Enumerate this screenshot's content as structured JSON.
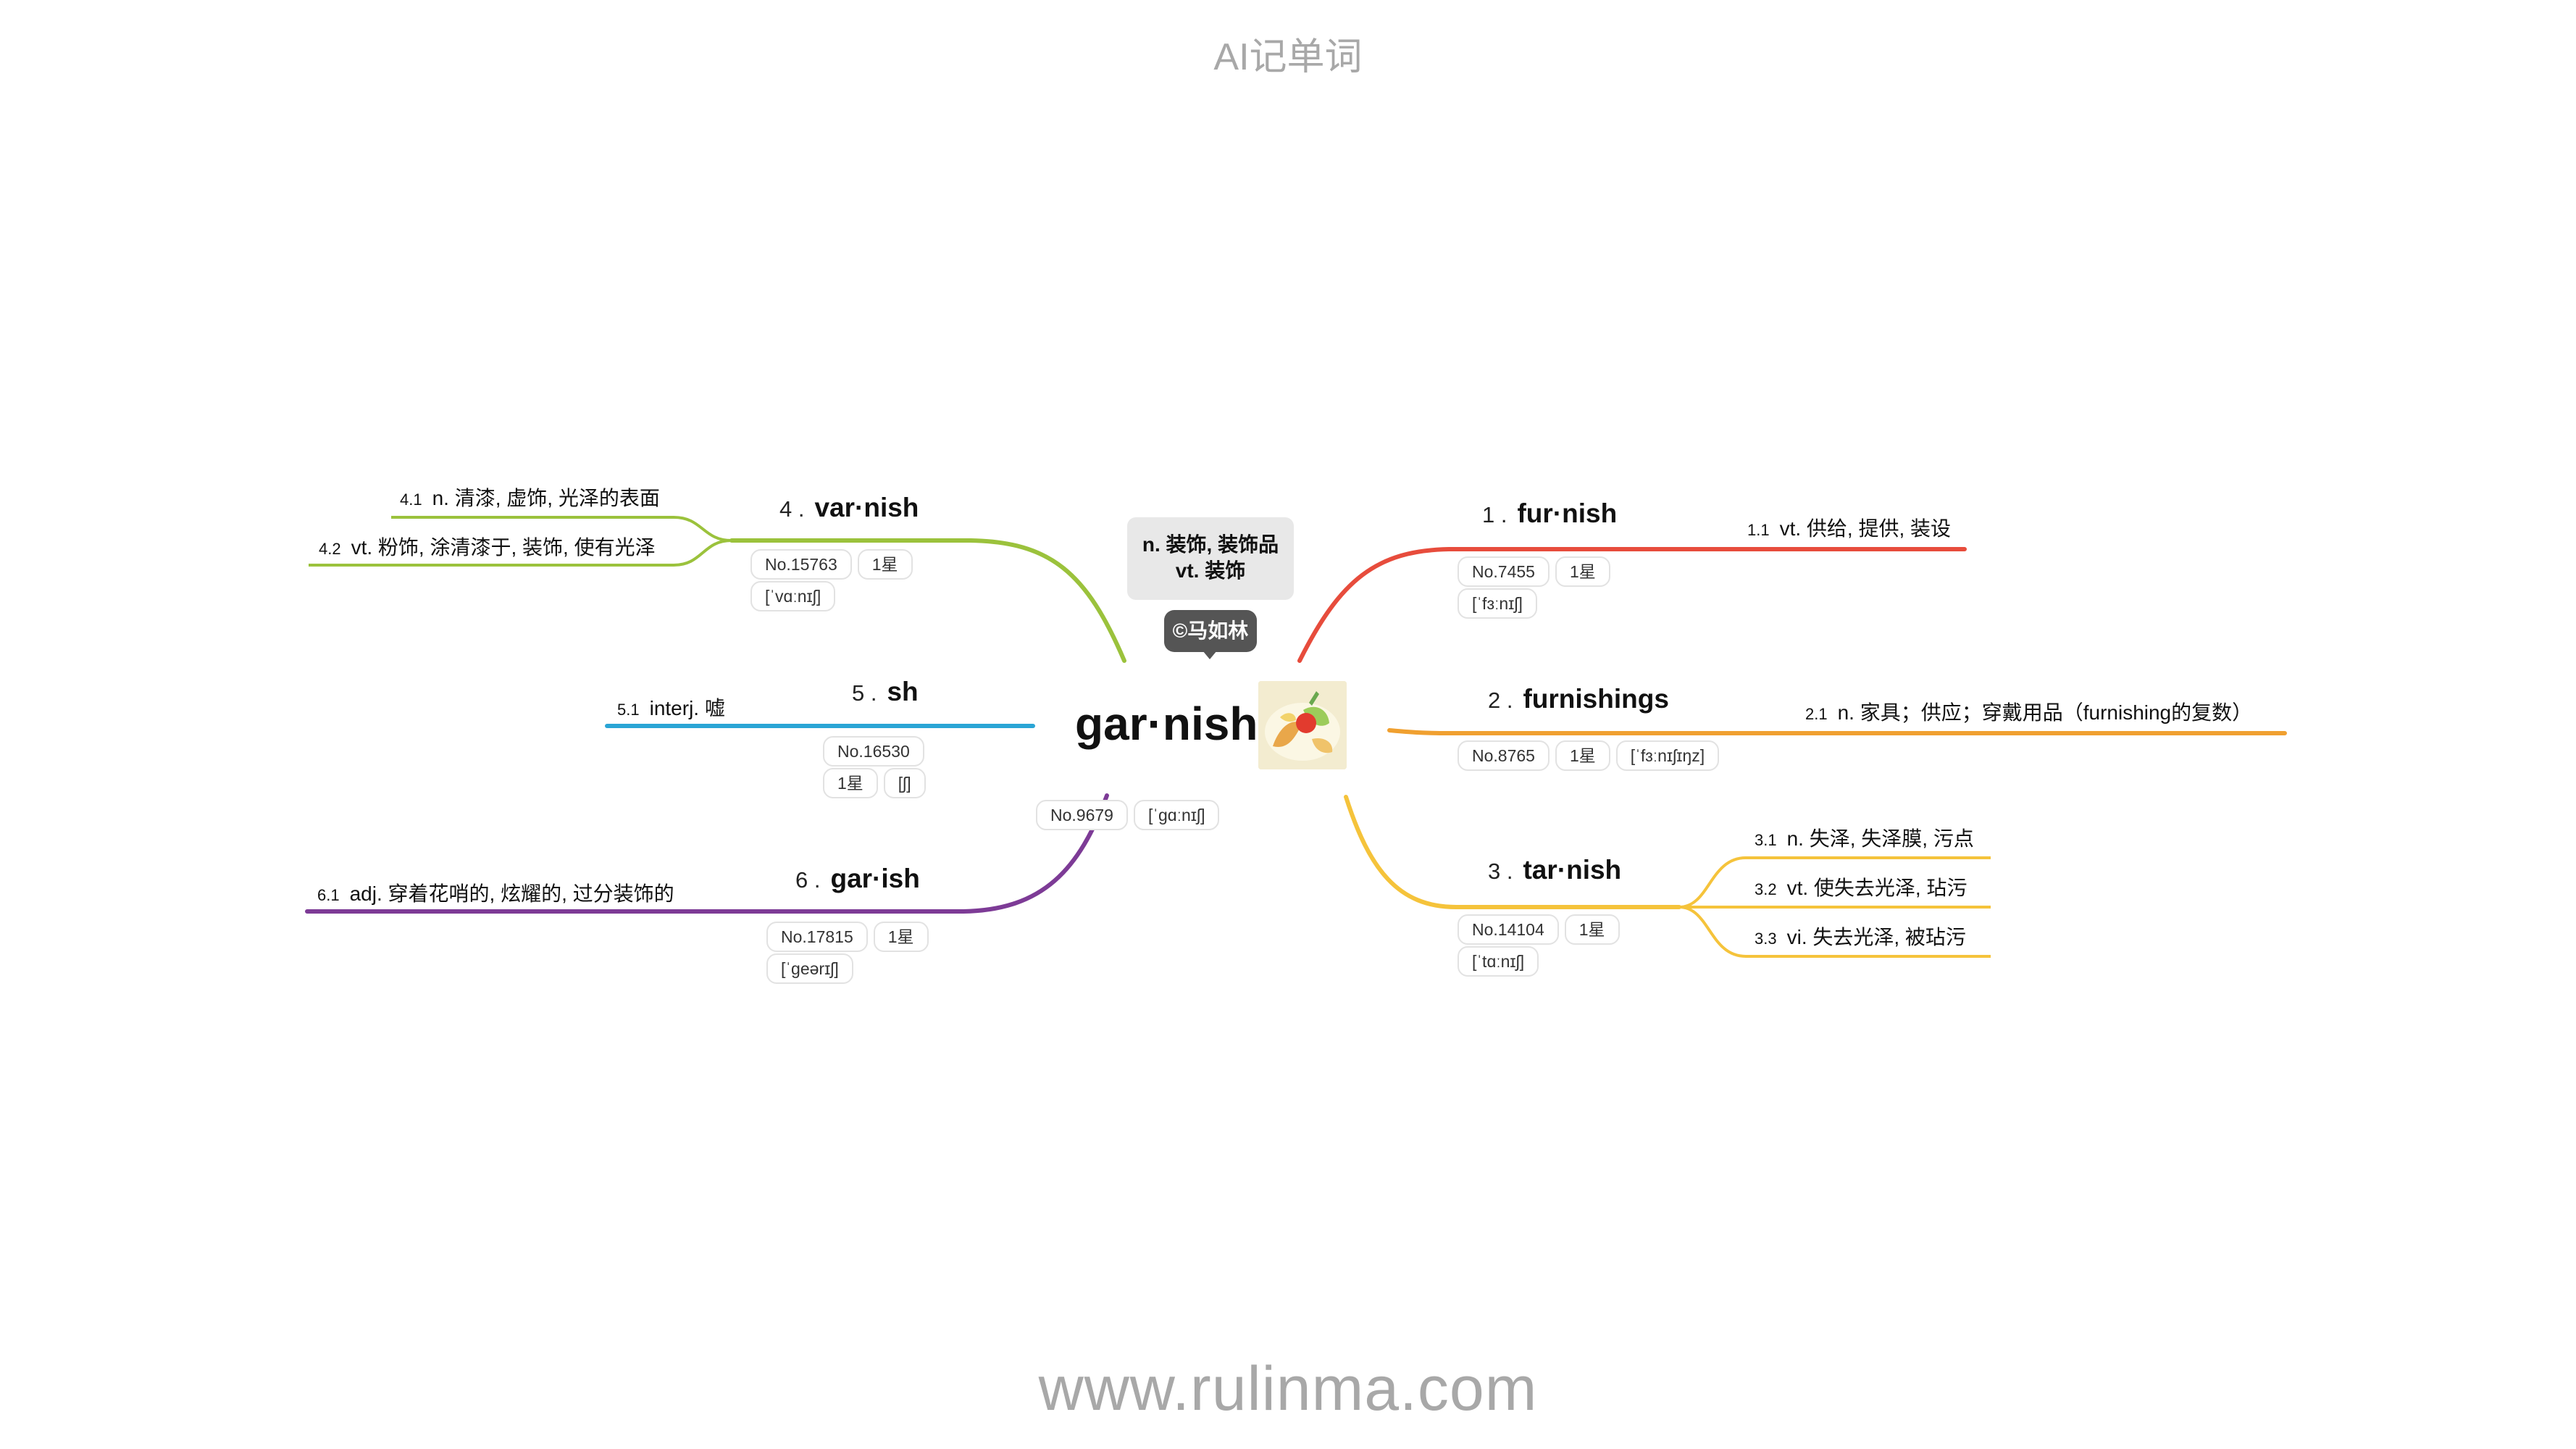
{
  "header": {
    "title": "AI记单词"
  },
  "footer": {
    "site": "www.rulinma.com"
  },
  "center": {
    "word": "gar·nish",
    "no": "No.9679",
    "phonetic": "[ˈɡɑːnɪʃ]",
    "def_line1": "n. 装饰, 装饰品",
    "def_line2": "vt. 装饰",
    "copyright": "©马如林",
    "image": "garnish-food-image"
  },
  "branches": {
    "b1": {
      "num": "1 .",
      "word": "fur·nish",
      "no": "No.7455",
      "star": "1星",
      "phonetic": "[ˈfɜːnɪʃ]",
      "color": "#e74c3c",
      "meanings": [
        {
          "n": "1.1",
          "text": "vt. 供给, 提供, 装设"
        }
      ]
    },
    "b2": {
      "num": "2 .",
      "word": "furnishings",
      "no": "No.8765",
      "star": "1星",
      "phonetic": "[ˈfɜːnɪʃɪŋz]",
      "color": "#f0a030",
      "meanings": [
        {
          "n": "2.1",
          "text": "n. 家具；供应；穿戴用品（furnishing的复数）"
        }
      ]
    },
    "b3": {
      "num": "3 .",
      "word": "tar·nish",
      "no": "No.14104",
      "star": "1星",
      "phonetic": "[ˈtɑːnɪʃ]",
      "color": "#f5c33b",
      "meanings": [
        {
          "n": "3.1",
          "text": "n. 失泽, 失泽膜, 污点"
        },
        {
          "n": "3.2",
          "text": "vt. 使失去光泽, 玷污"
        },
        {
          "n": "3.3",
          "text": "vi. 失去光泽, 被玷污"
        }
      ]
    },
    "b4": {
      "num": "4 .",
      "word": "var·nish",
      "no": "No.15763",
      "star": "1星",
      "phonetic": "[ˈvɑːnɪʃ]",
      "color": "#9bc23c",
      "meanings": [
        {
          "n": "4.1",
          "text": "n. 清漆, 虚饰, 光泽的表面"
        },
        {
          "n": "4.2",
          "text": "vt. 粉饰, 涂清漆于, 装饰, 使有光泽"
        }
      ]
    },
    "b5": {
      "num": "5 .",
      "word": "sh",
      "no": "No.16530",
      "star": "1星",
      "phonetic": "[ʃ]",
      "color": "#2aa5d5",
      "meanings": [
        {
          "n": "5.1",
          "text": "interj. 嘘"
        }
      ]
    },
    "b6": {
      "num": "6 .",
      "word": "gar·ish",
      "no": "No.17815",
      "star": "1星",
      "phonetic": "[ˈɡeərɪʃ]",
      "color": "#7d3b96",
      "meanings": [
        {
          "n": "6.1",
          "text": "adj. 穿着花哨的, 炫耀的, 过分装饰的"
        }
      ]
    }
  }
}
